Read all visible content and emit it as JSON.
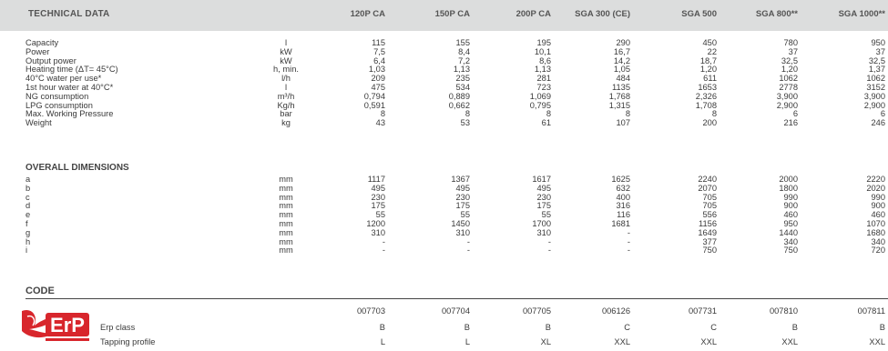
{
  "header": {
    "title": "TECHNICAL DATA",
    "columns": [
      "120P CA",
      "150P CA",
      "200P CA",
      "SGA 300 (CE)",
      "SGA 500",
      "SGA 800**",
      "SGA 1000**"
    ]
  },
  "technical_rows": [
    {
      "label": "Capacity",
      "unit": "l",
      "values": [
        "115",
        "155",
        "195",
        "290",
        "450",
        "780",
        "950"
      ]
    },
    {
      "label": "Power",
      "unit": "kW",
      "values": [
        "7,5",
        "8,4",
        "10,1",
        "16,7",
        "22",
        "37",
        "37"
      ]
    },
    {
      "label": "Output power",
      "unit": "kW",
      "values": [
        "6,4",
        "7,2",
        "8,6",
        "14,2",
        "18,7",
        "32,5",
        "32,5"
      ]
    },
    {
      "label": "Heating time (ΔT= 45°C)",
      "unit": "h, min.",
      "values": [
        "1,03",
        "1,13",
        "1,13",
        "1,05",
        "1,20",
        "1,20",
        "1,37"
      ]
    },
    {
      "label": "40°C water per use*",
      "unit": "l/h",
      "values": [
        "209",
        "235",
        "281",
        "484",
        "611",
        "1062",
        "1062"
      ]
    },
    {
      "label": "1st hour water at 40°C*",
      "unit": "l",
      "values": [
        "475",
        "534",
        "723",
        "1135",
        "1653",
        "2778",
        "3152"
      ]
    },
    {
      "label": "NG consumption",
      "unit": "m³/h",
      "values": [
        "0,794",
        "0,889",
        "1,069",
        "1,768",
        "2,326",
        "3,900",
        "3,900"
      ]
    },
    {
      "label": "LPG consumption",
      "unit": "Kg/h",
      "values": [
        "0,591",
        "0,662",
        "0,795",
        "1,315",
        "1,708",
        "2,900",
        "2,900"
      ]
    },
    {
      "label": "Max. Working Pressure",
      "unit": "bar",
      "values": [
        "8",
        "8",
        "8",
        "8",
        "8",
        "6",
        "6"
      ]
    },
    {
      "label": "Weight",
      "unit": "kg",
      "values": [
        "43",
        "53",
        "61",
        "107",
        "200",
        "216",
        "246"
      ]
    }
  ],
  "dimensions": {
    "title": "OVERALL DIMENSIONS",
    "rows": [
      {
        "label": "a",
        "unit": "mm",
        "values": [
          "1117",
          "1367",
          "1617",
          "1625",
          "2240",
          "2000",
          "2220"
        ]
      },
      {
        "label": "b",
        "unit": "mm",
        "values": [
          "495",
          "495",
          "495",
          "632",
          "2070",
          "1800",
          "2020"
        ]
      },
      {
        "label": "c",
        "unit": "mm",
        "values": [
          "230",
          "230",
          "230",
          "400",
          "705",
          "990",
          "990"
        ]
      },
      {
        "label": "d",
        "unit": "mm",
        "values": [
          "175",
          "175",
          "175",
          "316",
          "705",
          "900",
          "900"
        ]
      },
      {
        "label": "e",
        "unit": "mm",
        "values": [
          "55",
          "55",
          "55",
          "116",
          "556",
          "460",
          "460"
        ]
      },
      {
        "label": "f",
        "unit": "mm",
        "values": [
          "1200",
          "1450",
          "1700",
          "1681",
          "1156",
          "950",
          "1070"
        ]
      },
      {
        "label": "g",
        "unit": "mm",
        "values": [
          "310",
          "310",
          "310",
          "-",
          "1649",
          "1440",
          "1680"
        ]
      },
      {
        "label": "h",
        "unit": "mm",
        "values": [
          "-",
          "-",
          "-",
          "-",
          "377",
          "340",
          "340"
        ]
      },
      {
        "label": "i",
        "unit": "mm",
        "values": [
          "-",
          "-",
          "-",
          "-",
          "750",
          "750",
          "720"
        ]
      }
    ]
  },
  "code": {
    "title": "CODE",
    "codes": [
      "007703",
      "007704",
      "007705",
      "006126",
      "007731",
      "007810",
      "007811"
    ],
    "erp_label": "Erp class",
    "erp_values": [
      "B",
      "B",
      "B",
      "C",
      "C",
      "B",
      "B"
    ],
    "tapping_label": "Tapping profile",
    "tapping_values": [
      "L",
      "L",
      "XL",
      "XXL",
      "XXL",
      "XXL",
      "XXL"
    ],
    "logo_text": "ErP"
  },
  "colors": {
    "header_bg": "#dcdddd",
    "logo_red": "#d8262c"
  }
}
